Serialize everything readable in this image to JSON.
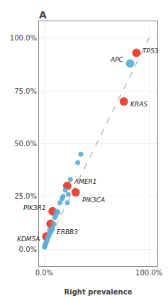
{
  "chart_data": {
    "type": "scatter",
    "title": "A",
    "x_label": "Right prevalence",
    "xlim": [
      -0.05,
      1.08
    ],
    "ylim": [
      -0.08,
      1.08
    ],
    "xticks": [
      {
        "value": 0.0,
        "label": "0.0%"
      },
      {
        "value": 1.0,
        "label": "100.0%"
      }
    ],
    "yticks": [
      {
        "value": 0.0,
        "label": "0.0%"
      },
      {
        "value": 0.25,
        "label": "25.0%"
      },
      {
        "value": 0.5,
        "label": "50.0%"
      },
      {
        "value": 0.75,
        "label": "75.0%"
      },
      {
        "value": 1.0,
        "label": "100.0%"
      }
    ],
    "grid": true,
    "series": [
      {
        "type": "line",
        "x": [
          0.0,
          1.0
        ],
        "y": [
          0.0,
          1.0
        ],
        "color": "#aaaaaa",
        "line_style": "dashed"
      },
      {
        "type": "scatter",
        "marker": "circle",
        "x": [
          0.88,
          0.82,
          0.76,
          0.22,
          0.3,
          0.08,
          0.06,
          0.02,
          0.35,
          0.32,
          0.18,
          0.15,
          0.12,
          0.1,
          0.08,
          0.07,
          0.06,
          0.055,
          0.04,
          0.03,
          0.025,
          0.02,
          0.015,
          0.01,
          0.008,
          0.2,
          0.25,
          0.17,
          0.13,
          0.11,
          0.09,
          0.05,
          0.22,
          0.23,
          0.005,
          0.003
        ],
        "y": [
          0.93,
          0.88,
          0.7,
          0.3,
          0.27,
          0.18,
          0.12,
          0.06,
          0.45,
          0.41,
          0.25,
          0.22,
          0.18,
          0.15,
          0.1,
          0.09,
          0.085,
          0.075,
          0.06,
          0.05,
          0.04,
          0.035,
          0.028,
          0.022,
          0.018,
          0.28,
          0.33,
          0.24,
          0.175,
          0.16,
          0.12,
          0.09,
          0.22,
          0.26,
          0.013,
          0.01
        ],
        "colors": [
          "#e8382a",
          "#5bafd6",
          "#e8382a",
          "#e8382a",
          "#e8382a",
          "#e8382a",
          "#e8382a",
          "#e8382a",
          "#5bafd6",
          "#5bafd6",
          "#5bafd6",
          "#5bafd6",
          "#5bafd6",
          "#5bafd6",
          "#5bafd6",
          "#5bafd6",
          "#5bafd6",
          "#5bafd6",
          "#5bafd6",
          "#5bafd6",
          "#5bafd6",
          "#5bafd6",
          "#5bafd6",
          "#5bafd6",
          "#5bafd6",
          "#5bafd6",
          "#5bafd6",
          "#5bafd6",
          "#5bafd6",
          "#5bafd6",
          "#5bafd6",
          "#5bafd6",
          "#5bafd6",
          "#5bafd6",
          "#5bafd6",
          "#5bafd6"
        ]
      }
    ],
    "annotations": [
      {
        "text": "TP53",
        "x": 0.88,
        "y": 0.93
      },
      {
        "text": "APC",
        "x": 0.82,
        "y": 0.88
      },
      {
        "text": "KRAS",
        "x": 0.76,
        "y": 0.7
      },
      {
        "text": "AMER1",
        "x": 0.22,
        "y": 0.3
      },
      {
        "text": "PIK3CA",
        "x": 0.3,
        "y": 0.27
      },
      {
        "text": "PIK3R1",
        "x": 0.08,
        "y": 0.18
      },
      {
        "text": "ERBB3",
        "x": 0.06,
        "y": 0.12
      },
      {
        "text": "KDM5A",
        "x": 0.02,
        "y": 0.06
      }
    ]
  }
}
